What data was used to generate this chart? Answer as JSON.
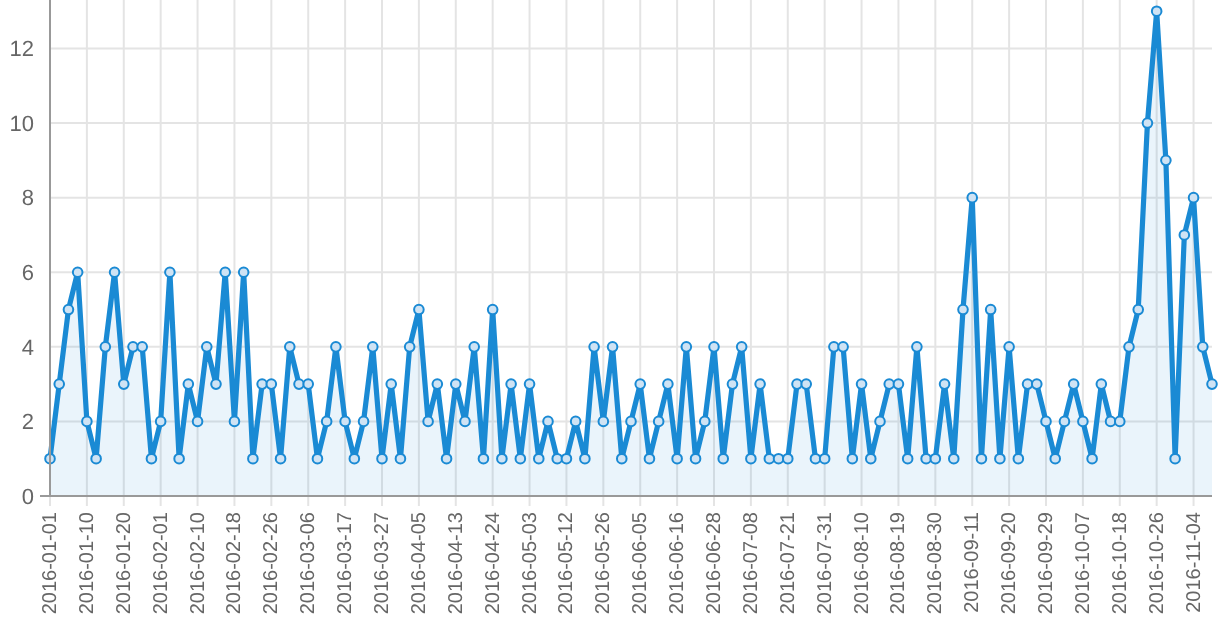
{
  "chart_data": {
    "type": "area",
    "categories": [
      "2016-01-01",
      null,
      null,
      null,
      "2016-01-10",
      null,
      null,
      null,
      "2016-01-20",
      null,
      null,
      null,
      "2016-02-01",
      null,
      null,
      null,
      "2016-02-10",
      null,
      null,
      null,
      "2016-02-18",
      null,
      null,
      null,
      "2016-02-26",
      null,
      null,
      null,
      "2016-03-06",
      null,
      null,
      null,
      "2016-03-17",
      null,
      null,
      null,
      "2016-03-27",
      null,
      null,
      null,
      "2016-04-05",
      null,
      null,
      null,
      "2016-04-13",
      null,
      null,
      null,
      "2016-04-24",
      null,
      null,
      null,
      "2016-05-03",
      null,
      null,
      null,
      "2016-05-12",
      null,
      null,
      null,
      "2016-05-26",
      null,
      null,
      null,
      "2016-06-05",
      null,
      null,
      null,
      "2016-06-16",
      null,
      null,
      null,
      "2016-06-28",
      null,
      null,
      null,
      "2016-07-08",
      null,
      null,
      null,
      "2016-07-21",
      null,
      null,
      null,
      "2016-07-31",
      null,
      null,
      null,
      "2016-08-10",
      null,
      null,
      null,
      "2016-08-19",
      null,
      null,
      null,
      "2016-08-30",
      null,
      null,
      null,
      "2016-09-11",
      null,
      null,
      null,
      "2016-09-20",
      null,
      null,
      null,
      "2016-09-29",
      null,
      null,
      null,
      "2016-10-07",
      null,
      null,
      null,
      "2016-10-18",
      null,
      null,
      null,
      "2016-10-26",
      null,
      null,
      null,
      "2016-11-04",
      null,
      null
    ],
    "series": [
      {
        "color": "#1a8ad4",
        "values": [
          1,
          3,
          5,
          6,
          2,
          1,
          4,
          6,
          3,
          4,
          4,
          1,
          2,
          6,
          1,
          3,
          2,
          4,
          3,
          6,
          2,
          6,
          1,
          3,
          3,
          1,
          4,
          3,
          3,
          1,
          2,
          4,
          2,
          1,
          2,
          4,
          1,
          3,
          1,
          4,
          5,
          2,
          3,
          1,
          3,
          2,
          4,
          1,
          5,
          1,
          3,
          1,
          3,
          1,
          2,
          1,
          1,
          2,
          1,
          4,
          2,
          4,
          1,
          2,
          3,
          1,
          2,
          3,
          1,
          4,
          1,
          2,
          4,
          1,
          3,
          4,
          1,
          3,
          1,
          1,
          1,
          3,
          3,
          1,
          1,
          4,
          4,
          1,
          3,
          1,
          2,
          3,
          3,
          1,
          4,
          1,
          1,
          3,
          1,
          5,
          8,
          1,
          5,
          1,
          4,
          1,
          3,
          3,
          2,
          1,
          2,
          3,
          2,
          1,
          3,
          2,
          2,
          4,
          5,
          10,
          13,
          9,
          1,
          7,
          8,
          4,
          3
        ]
      }
    ],
    "ylim": [
      0,
      13.3
    ],
    "yticks": [
      0,
      2,
      4,
      6,
      8,
      10,
      12
    ],
    "grid": true,
    "marker": "circle"
  }
}
